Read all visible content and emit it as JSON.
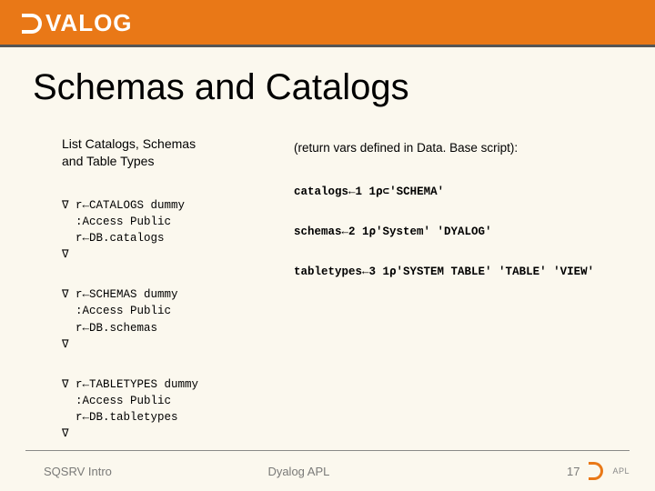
{
  "colors": {
    "background": "#fbf8ee",
    "brand": "#e97817",
    "topbar_rule": "#555555",
    "footer_text": "#7a7a78",
    "footer_rule": "#8a8a88",
    "text": "#000000",
    "logo_fg": "#ffffff"
  },
  "fonts": {
    "body": "Arial",
    "mono": "Courier New",
    "title_size_pt": 40,
    "intro_size_pt": 14,
    "code_size_pt": 12.5
  },
  "logo": {
    "text": "VALOG"
  },
  "title": "Schemas and Catalogs",
  "intro_left_line1": "List Catalogs, Schemas",
  "intro_left_line2": "and Table Types",
  "intro_right": "(return vars defined in Data. Base script):",
  "blocks": [
    {
      "code": "∇ r←CATALOGS dummy\n  :Access Public\n  r←DB.catalogs\n∇",
      "result": "catalogs←1 1⍴⊂'SCHEMA'"
    },
    {
      "code": "∇ r←SCHEMAS dummy\n  :Access Public\n  r←DB.schemas\n∇",
      "result": "schemas←2 1⍴'System' 'DYALOG'"
    },
    {
      "code": "∇ r←TABLETYPES dummy\n  :Access Public\n  r←DB.tabletypes\n∇",
      "result": "tabletypes←3 1⍴'SYSTEM TABLE' 'TABLE' 'VIEW'"
    }
  ],
  "footer": {
    "left": "SQSRV Intro",
    "mid": "Dyalog APL",
    "page": "17",
    "tag": "APL"
  }
}
